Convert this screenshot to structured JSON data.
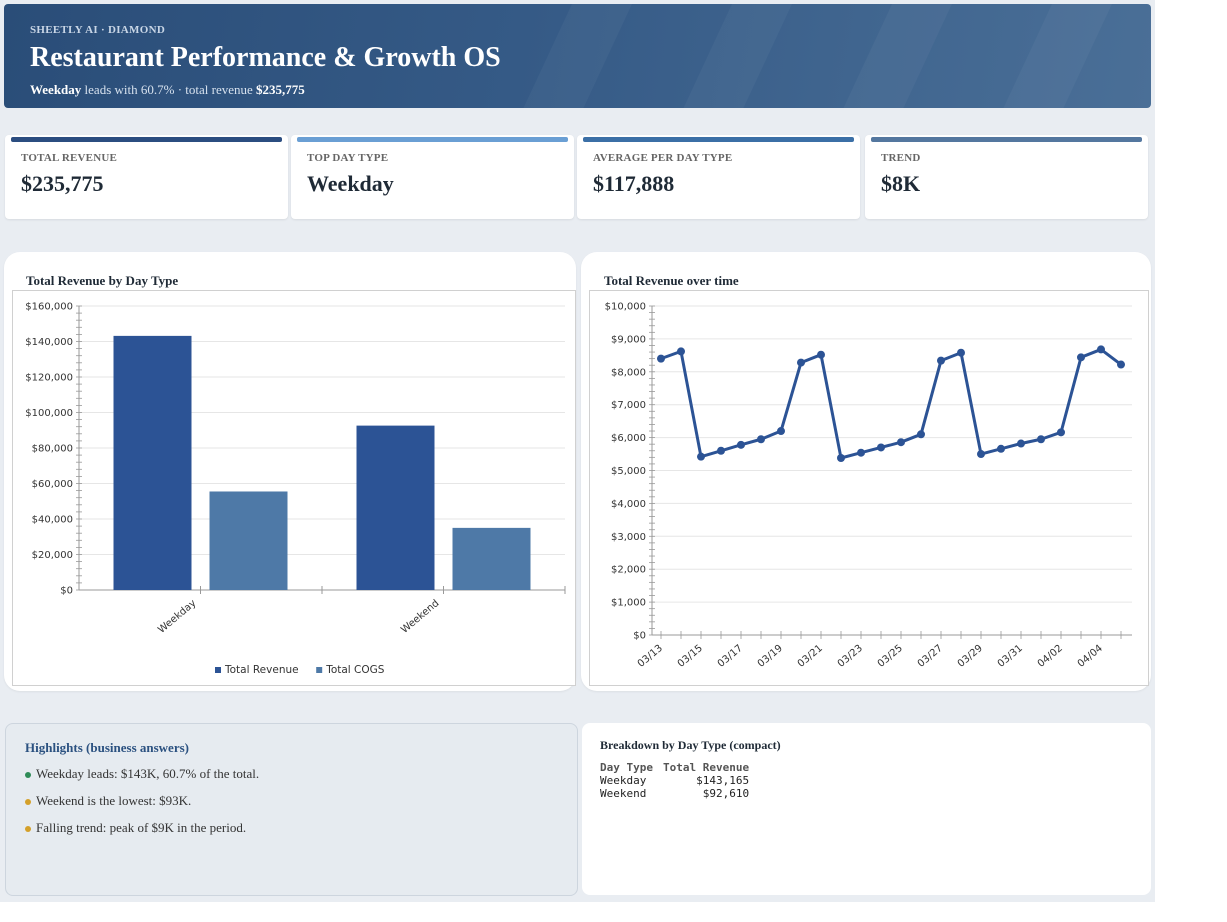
{
  "header": {
    "eyebrow": "SHEETLY AI · DIAMOND",
    "title": "Restaurant Performance & Growth OS",
    "subtitle_bold": "Weekday",
    "subtitle_text": "leads with 60.7% · total revenue",
    "subtitle_value": "$235,775"
  },
  "kpis": [
    {
      "label": "TOTAL REVENUE",
      "value": "$235,775",
      "color": "#2b4d80"
    },
    {
      "label": "TOP DAY TYPE",
      "value": "Weekday",
      "color": "#6a9fd4"
    },
    {
      "label": "AVERAGE PER DAY TYPE",
      "value": "$117,888",
      "color": "#3b6fa6"
    },
    {
      "label": "TREND",
      "value": "$8K",
      "color": "#54779f"
    }
  ],
  "bar_panel": {
    "title": "Total Revenue by Day Type"
  },
  "line_panel": {
    "title": "Total Revenue over time"
  },
  "chart_data": [
    {
      "type": "bar",
      "title": "Total Revenue by Day Type",
      "categories": [
        "Weekday",
        "Weekend"
      ],
      "series": [
        {
          "name": "Total Revenue",
          "values": [
            143165,
            92610
          ],
          "color": "#2c5395"
        },
        {
          "name": "Total COGS",
          "values": [
            55500,
            35000
          ],
          "color": "#4e79a7"
        }
      ],
      "ylim": [
        0,
        160000
      ],
      "yticks": [
        "$0",
        "$20,000",
        "$40,000",
        "$60,000",
        "$80,000",
        "$100,000",
        "$120,000",
        "$140,000",
        "$160,000"
      ],
      "grid": true,
      "legend": "bottom"
    },
    {
      "type": "line",
      "title": "Total Revenue over time",
      "x": [
        "03/13",
        "03/14",
        "03/15",
        "03/16",
        "03/17",
        "03/18",
        "03/19",
        "03/20",
        "03/21",
        "03/22",
        "03/23",
        "03/24",
        "03/25",
        "03/26",
        "03/27",
        "03/28",
        "03/29",
        "03/30",
        "03/31",
        "04/01",
        "04/02",
        "04/03",
        "04/04",
        "04/05"
      ],
      "xticks": [
        "03/13",
        "03/15",
        "03/17",
        "03/19",
        "03/21",
        "03/23",
        "03/25",
        "03/27",
        "03/29",
        "03/31",
        "04/02",
        "04/04"
      ],
      "series": [
        {
          "name": "Total Revenue",
          "values": [
            8400,
            8620,
            5420,
            5600,
            5780,
            5950,
            6200,
            8280,
            8520,
            5380,
            5540,
            5700,
            5860,
            6100,
            8340,
            8580,
            5500,
            5660,
            5820,
            5950,
            6160,
            8440,
            8680,
            8220
          ],
          "color": "#2c5395"
        }
      ],
      "ylim": [
        0,
        10000
      ],
      "yticks": [
        "$0",
        "$1,000",
        "$2,000",
        "$3,000",
        "$4,000",
        "$5,000",
        "$6,000",
        "$7,000",
        "$8,000",
        "$9,000",
        "$10,000"
      ],
      "grid": true
    }
  ],
  "highlights": {
    "title": "Highlights (business answers)",
    "items": [
      {
        "text": "Weekday leads: $143K, 60.7% of the total.",
        "color": "#2e8b57"
      },
      {
        "text": "Weekend is the lowest: $93K.",
        "color": "#d4a02a"
      },
      {
        "text": "Falling trend: peak of $9K in the period.",
        "color": "#d4a02a"
      }
    ]
  },
  "breakdown": {
    "title": "Breakdown by Day Type (compact)",
    "headers": [
      "Day Type",
      "Total Revenue"
    ],
    "rows": [
      [
        "Weekday",
        "$143,165"
      ],
      [
        "Weekend",
        "$92,610"
      ]
    ]
  }
}
